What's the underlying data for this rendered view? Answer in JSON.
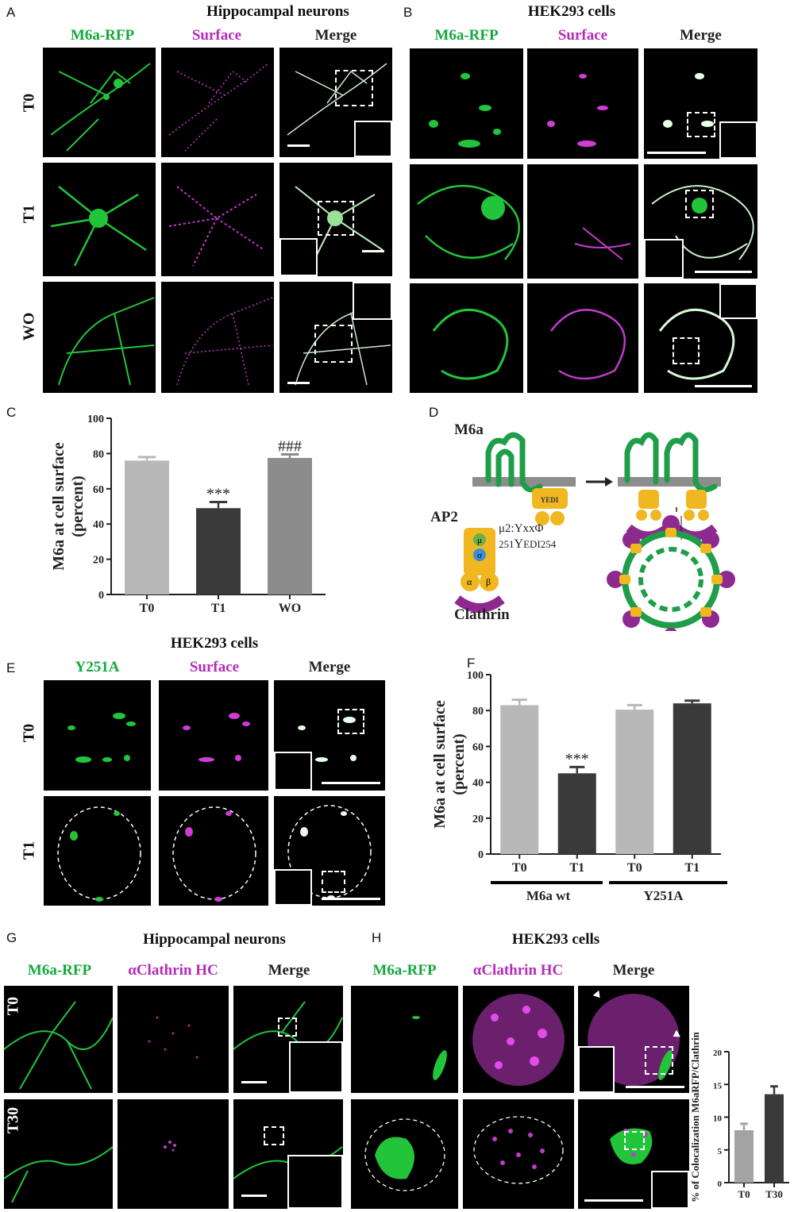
{
  "panels": {
    "A": {
      "letter": "A",
      "title": "Hippocampal neurons",
      "channels": [
        "M6a-RFP",
        "Surface",
        "Merge"
      ],
      "rows": [
        "T0",
        "T1",
        "WO"
      ]
    },
    "B": {
      "letter": "B",
      "title": "HEK293 cells",
      "channels": [
        "M6a-RFP",
        "Surface",
        "Merge"
      ]
    },
    "C": {
      "letter": "C"
    },
    "D": {
      "letter": "D",
      "m6a": "M6a",
      "motif": "YEDI",
      "ap2": "AP2",
      "mu": "μ",
      "sigma": "σ",
      "alpha": "α",
      "beta": "β",
      "mu2": "μ2:YxxΦ",
      "seq_start": "251",
      "seq_mid": "Y",
      "seq_small": "EDI",
      "seq_end": "254",
      "clathrin": "Clathrin"
    },
    "E": {
      "letter": "E",
      "title": "HEK293 cells",
      "channels": [
        "Y251A",
        "Surface",
        "Merge"
      ],
      "rows": [
        "T0",
        "T1"
      ]
    },
    "F": {
      "letter": "F"
    },
    "G": {
      "letter": "G",
      "title": "Hippocampal neurons",
      "channels": [
        "M6a-RFP",
        "αClathrin HC",
        "Merge"
      ],
      "rows": [
        "T0",
        "T30"
      ]
    },
    "H": {
      "letter": "H",
      "title": "HEK293 cells",
      "channels": [
        "M6a-RFP",
        "αClathrin HC",
        "Merge"
      ]
    }
  },
  "chart_data": [
    {
      "id": "C",
      "type": "bar",
      "categories": [
        "T0",
        "T1",
        "WO"
      ],
      "values": [
        76,
        49,
        77.5
      ],
      "errors": [
        2,
        3.5,
        2
      ],
      "annotations": [
        "",
        "***",
        "###"
      ],
      "ylabel": "M6a at cell surface (percent)",
      "ylim": [
        0,
        100
      ],
      "yticks": [
        "0",
        "20",
        "40",
        "60",
        "80",
        "100"
      ],
      "colors": [
        "#b8b8b8",
        "#3a3a3a",
        "#8c8c8c"
      ]
    },
    {
      "id": "F",
      "type": "bar",
      "categories": [
        "T0",
        "T1",
        "T0",
        "T1"
      ],
      "values": [
        83,
        45,
        80.5,
        84
      ],
      "errors": [
        3,
        3.5,
        2.5,
        1.5
      ],
      "annotations": [
        "",
        "***",
        "",
        ""
      ],
      "groups": [
        "M6a wt",
        "Y251A"
      ],
      "ylabel": "M6a at cell surface (percent)",
      "ylim": [
        0,
        100
      ],
      "yticks": [
        "0",
        "20",
        "40",
        "60",
        "80",
        "100"
      ],
      "colors": [
        "#b8b8b8",
        "#3a3a3a",
        "#b8b8b8",
        "#3a3a3a"
      ]
    },
    {
      "id": "H",
      "type": "bar",
      "categories": [
        "T0",
        "T30"
      ],
      "values": [
        8,
        13.5
      ],
      "errors": [
        1,
        1.2
      ],
      "ylabel": "% of Colocalization M6aRFP/Clathrin",
      "ylim": [
        0,
        20
      ],
      "yticks": [
        "0",
        "5",
        "10",
        "15",
        "20"
      ],
      "colors": [
        "#a3a3a3",
        "#3a3a3a"
      ]
    }
  ]
}
